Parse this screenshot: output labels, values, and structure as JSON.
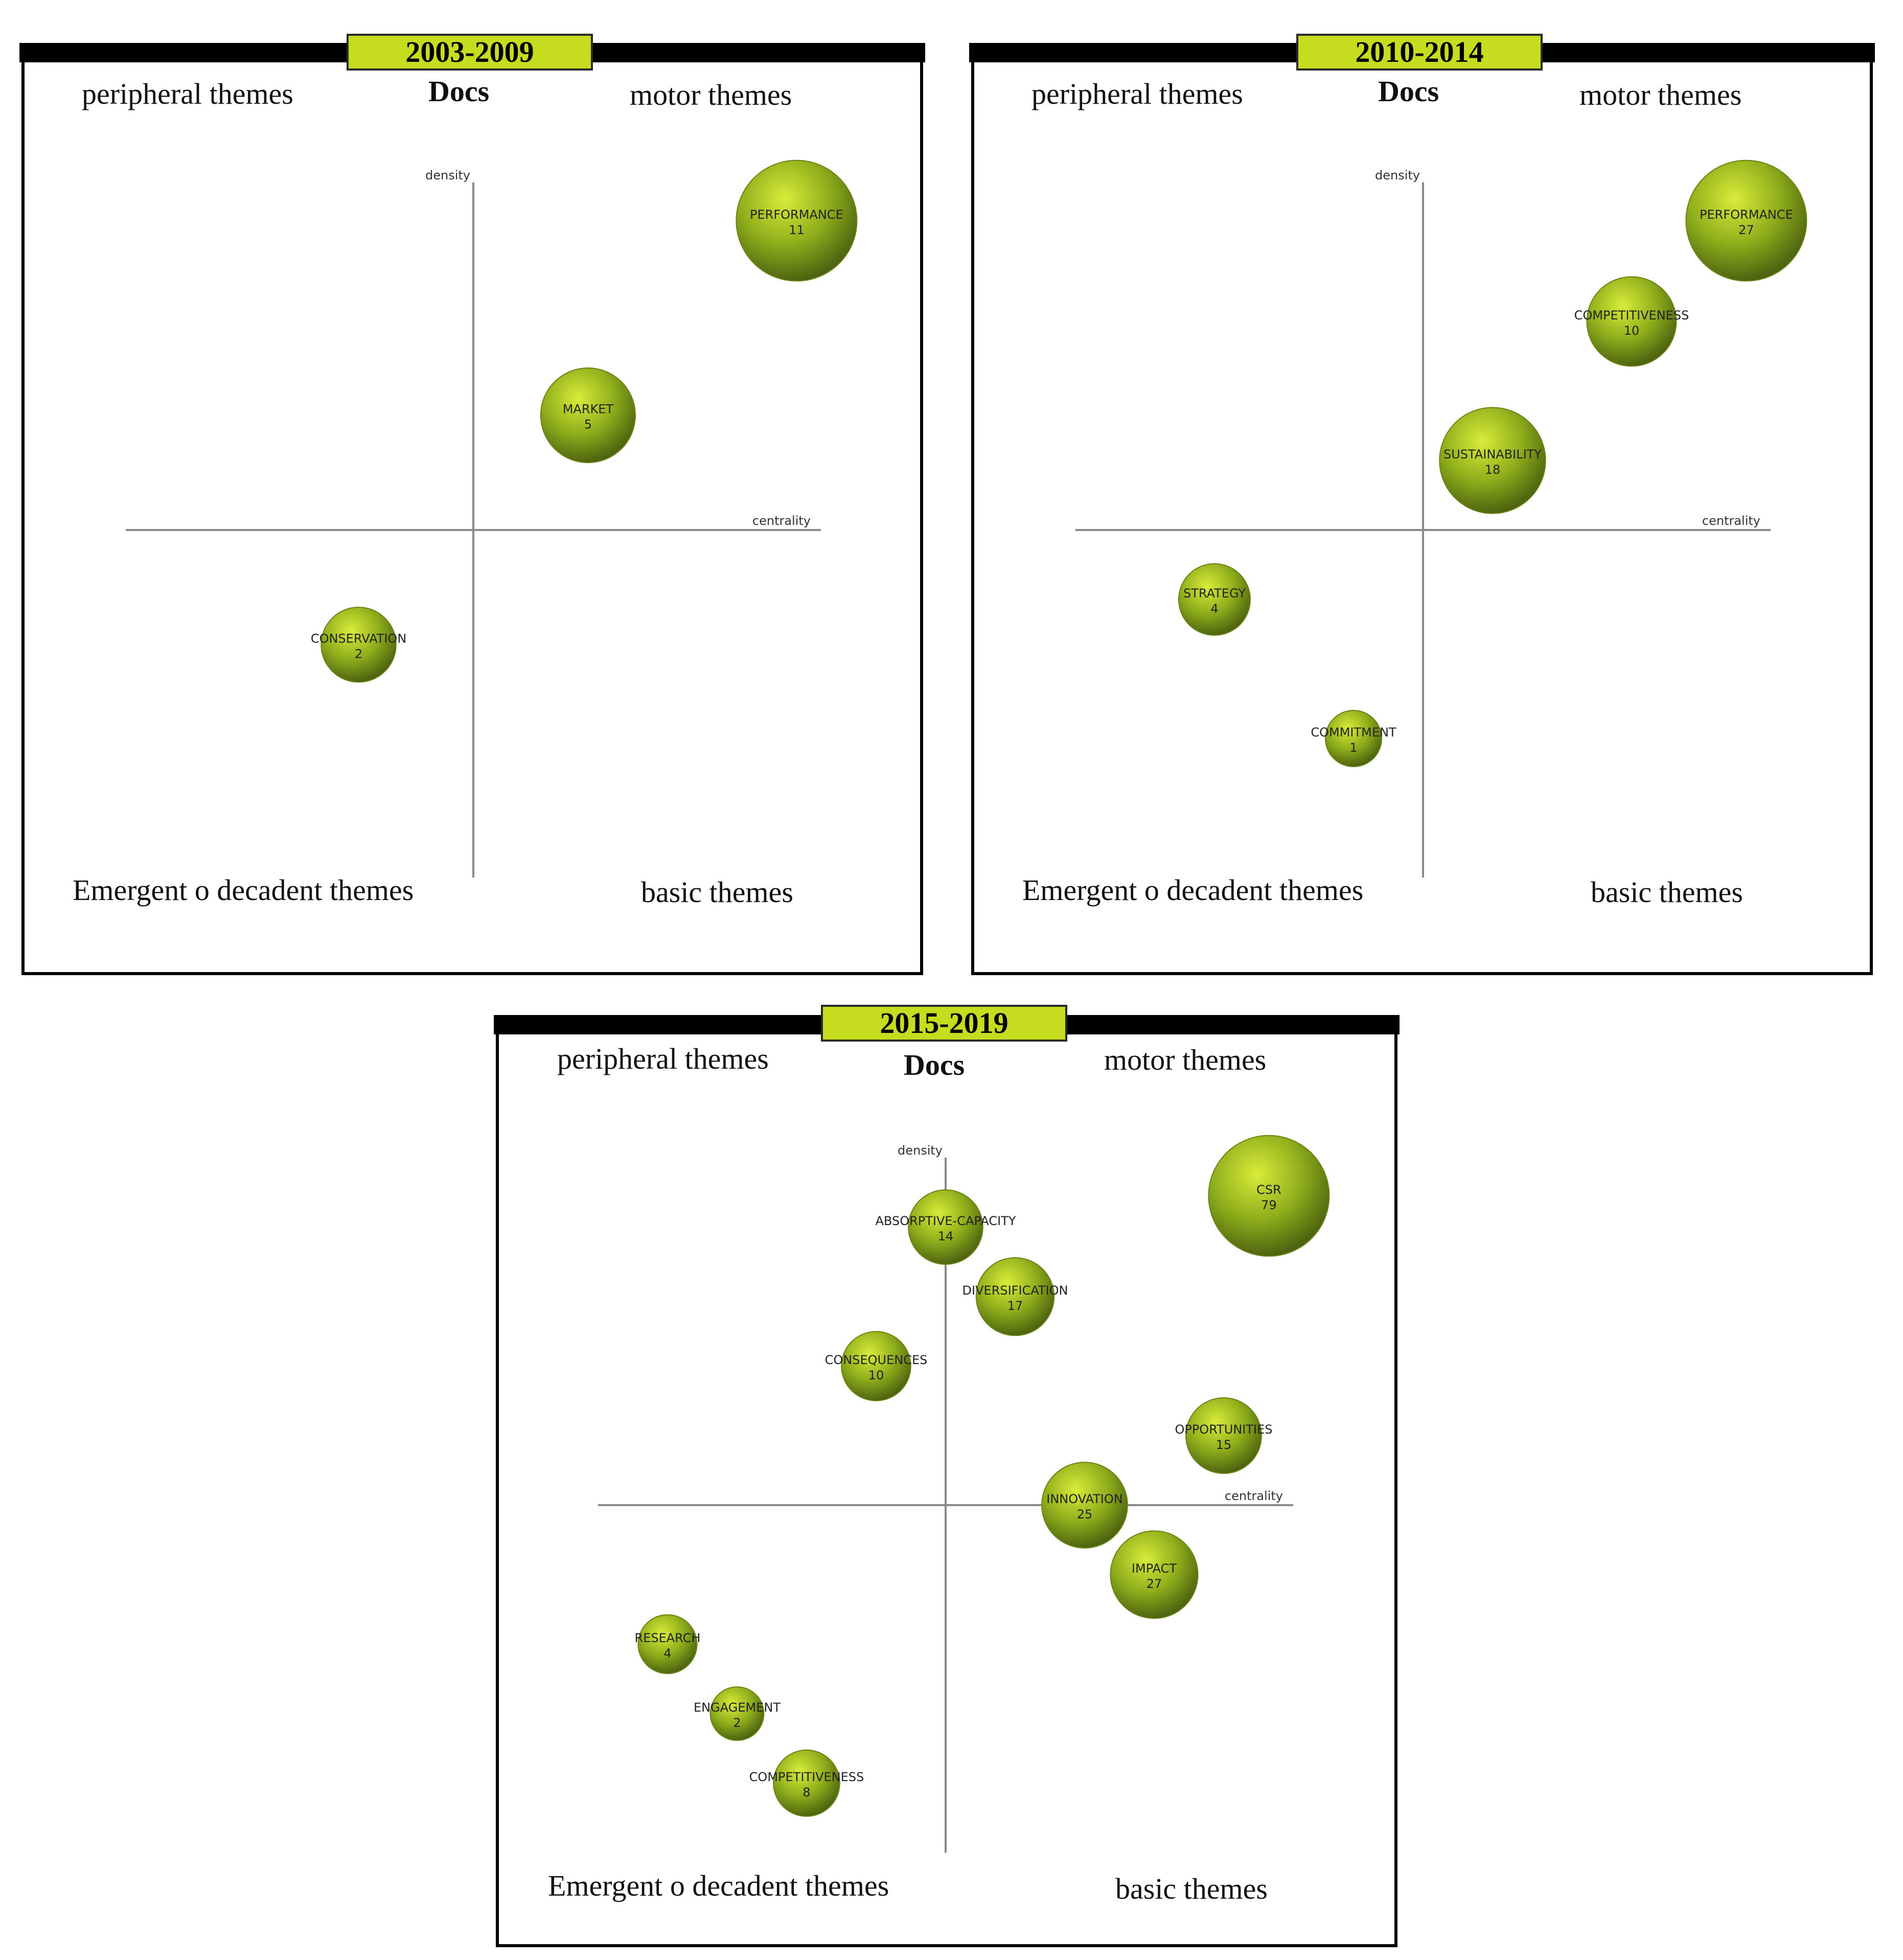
{
  "quadrant_labels": {
    "top_left": "peripheral themes",
    "top_right": "motor themes",
    "bottom_left": "Emergent o decadent themes",
    "bottom_right": "basic themes",
    "size_legend": "Docs"
  },
  "colors": {
    "period_badge": "#c6dd1f",
    "bubble": "#8fae1b",
    "axis": "#8a8a8a"
  },
  "chart_data": [
    {
      "type": "scatter",
      "title": "2003-2009",
      "xlabel": "centrality",
      "ylabel": "density",
      "size_label": "Docs",
      "points": [
        {
          "label": "PERFORMANCE",
          "docs": 11,
          "x": 0.93,
          "y": 0.89
        },
        {
          "label": "MARKET",
          "docs": 5,
          "x": 0.33,
          "y": 0.33
        },
        {
          "label": "CONSERVATION",
          "docs": 2,
          "x": -0.33,
          "y": -0.33
        }
      ]
    },
    {
      "type": "scatter",
      "title": "2010-2014",
      "xlabel": "centrality",
      "ylabel": "density",
      "size_label": "Docs",
      "points": [
        {
          "label": "PERFORMANCE",
          "docs": 27,
          "x": 0.93,
          "y": 0.89
        },
        {
          "label": "COMPETITIVENESS",
          "docs": 10,
          "x": 0.6,
          "y": 0.6
        },
        {
          "label": "SUSTAINABILITY",
          "docs": 18,
          "x": 0.2,
          "y": 0.2
        },
        {
          "label": "STRATEGY",
          "docs": 4,
          "x": -0.6,
          "y": -0.2
        },
        {
          "label": "COMMITMENT",
          "docs": 1,
          "x": -0.2,
          "y": -0.6
        }
      ]
    },
    {
      "type": "scatter",
      "title": "2015-2019",
      "xlabel": "centrality",
      "ylabel": "density",
      "size_label": "Docs",
      "points": [
        {
          "label": "CSR",
          "docs": 79,
          "x": 0.93,
          "y": 0.89
        },
        {
          "label": "ABSORPTIVE-CAPACITY",
          "docs": 14,
          "x": 0.0,
          "y": 0.8
        },
        {
          "label": "DIVERSIFICATION",
          "docs": 17,
          "x": 0.2,
          "y": 0.6
        },
        {
          "label": "CONSEQUENCES",
          "docs": 10,
          "x": -0.2,
          "y": 0.4
        },
        {
          "label": "OPPORTUNITIES",
          "docs": 15,
          "x": 0.8,
          "y": 0.2
        },
        {
          "label": "INNOVATION",
          "docs": 25,
          "x": 0.4,
          "y": 0.0
        },
        {
          "label": "IMPACT",
          "docs": 27,
          "x": 0.6,
          "y": -0.2
        },
        {
          "label": "RESEARCH",
          "docs": 4,
          "x": -0.8,
          "y": -0.4
        },
        {
          "label": "ENGAGEMENT",
          "docs": 2,
          "x": -0.6,
          "y": -0.6
        },
        {
          "label": "COMPETITIVENESS",
          "docs": 8,
          "x": -0.4,
          "y": -0.8
        }
      ]
    }
  ]
}
